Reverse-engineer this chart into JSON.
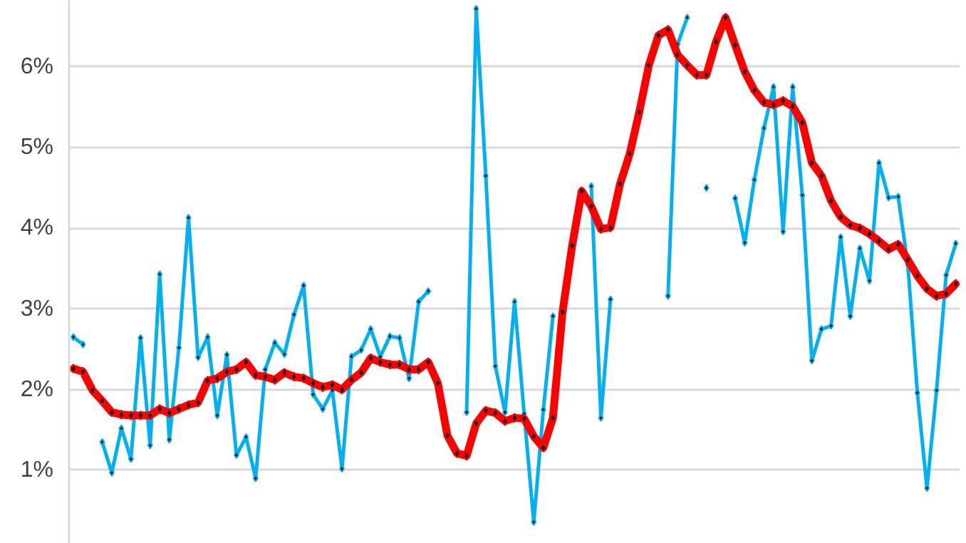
{
  "chart_data": {
    "type": "line",
    "categories": [
      null,
      null,
      null,
      null,
      null,
      null,
      null,
      null,
      null,
      null,
      null,
      null,
      null,
      null,
      null,
      null,
      null,
      null,
      null,
      null,
      null,
      null,
      null,
      null,
      null,
      null,
      null,
      null,
      null,
      null,
      null,
      null,
      null,
      null,
      null,
      null,
      null,
      null,
      null,
      null,
      null,
      null,
      null,
      null,
      null,
      null,
      null,
      null,
      null,
      null,
      null,
      null,
      null,
      null,
      null,
      null,
      null,
      null,
      null,
      null,
      null,
      null,
      null,
      null,
      null,
      null,
      null,
      null,
      null,
      null,
      null,
      null,
      null,
      null,
      null,
      null,
      null,
      null,
      null,
      null,
      null,
      null,
      null,
      null,
      null,
      null,
      null,
      null,
      null,
      null,
      null,
      null,
      null
    ],
    "series": [
      {
        "color": "#00b0f0",
        "values": [
          2.65,
          2.56,
          null,
          1.35,
          0.97,
          1.52,
          1.14,
          2.64,
          1.31,
          3.43,
          1.38,
          2.52,
          4.13,
          2.4,
          2.65,
          1.68,
          2.43,
          1.19,
          1.41,
          0.9,
          2.25,
          2.58,
          2.44,
          2.93,
          3.29,
          1.94,
          1.76,
          1.99,
          1.02,
          2.41,
          2.49,
          2.75,
          2.41,
          2.66,
          2.64,
          2.14,
          3.09,
          3.22,
          null,
          null,
          null,
          1.72,
          6.72,
          4.65,
          2.29,
          1.72,
          3.09,
          1.7,
          0.36,
          1.75,
          2.91,
          null,
          null,
          null,
          4.52,
          1.65,
          3.12,
          null,
          null,
          null,
          null,
          null,
          3.16,
          6.28,
          6.61,
          null,
          4.5,
          null,
          null,
          4.37,
          3.82,
          4.6,
          5.24,
          5.75,
          3.96,
          5.75,
          4.41,
          2.36,
          2.75,
          2.79,
          3.89,
          2.91,
          3.75,
          3.35,
          4.81,
          4.38,
          4.39,
          3.55,
          1.96,
          0.78,
          1.99,
          3.42,
          3.81
        ]
      },
      {
        "color": "#ff0000",
        "values": [
          2.26,
          2.22,
          1.99,
          1.86,
          1.72,
          1.69,
          1.68,
          1.68,
          1.68,
          1.76,
          1.71,
          1.76,
          1.81,
          1.84,
          2.11,
          2.14,
          2.22,
          2.25,
          2.34,
          2.18,
          2.16,
          2.12,
          2.21,
          2.16,
          2.14,
          2.08,
          2.03,
          2.06,
          2.0,
          2.12,
          2.21,
          2.39,
          2.34,
          2.31,
          2.31,
          2.25,
          2.25,
          2.34,
          2.08,
          1.43,
          1.21,
          1.18,
          1.58,
          1.74,
          1.71,
          1.61,
          1.65,
          1.64,
          1.42,
          1.28,
          1.65,
          2.96,
          3.78,
          4.46,
          4.27,
          3.99,
          4.01,
          4.55,
          4.92,
          5.44,
          6.02,
          6.39,
          6.46,
          6.15,
          6.02,
          5.9,
          5.9,
          6.31,
          6.61,
          6.27,
          5.94,
          5.71,
          5.56,
          5.53,
          5.58,
          5.51,
          5.31,
          4.81,
          4.65,
          4.34,
          4.14,
          4.04,
          4.0,
          3.93,
          3.84,
          3.74,
          3.8,
          3.61,
          3.41,
          3.25,
          3.16,
          3.19,
          3.31
        ]
      }
    ],
    "ylim": [
      0.09,
      6.82
    ],
    "yticks": [
      {
        "value": 1,
        "label": "1%"
      },
      {
        "value": 2,
        "label": "2%"
      },
      {
        "value": 3,
        "label": "3%"
      },
      {
        "value": 4,
        "label": "4%"
      },
      {
        "value": 5,
        "label": "5%"
      },
      {
        "value": 6,
        "label": "6%"
      }
    ],
    "grid": "y",
    "marker": "diamond",
    "tick_labels": "y"
  }
}
